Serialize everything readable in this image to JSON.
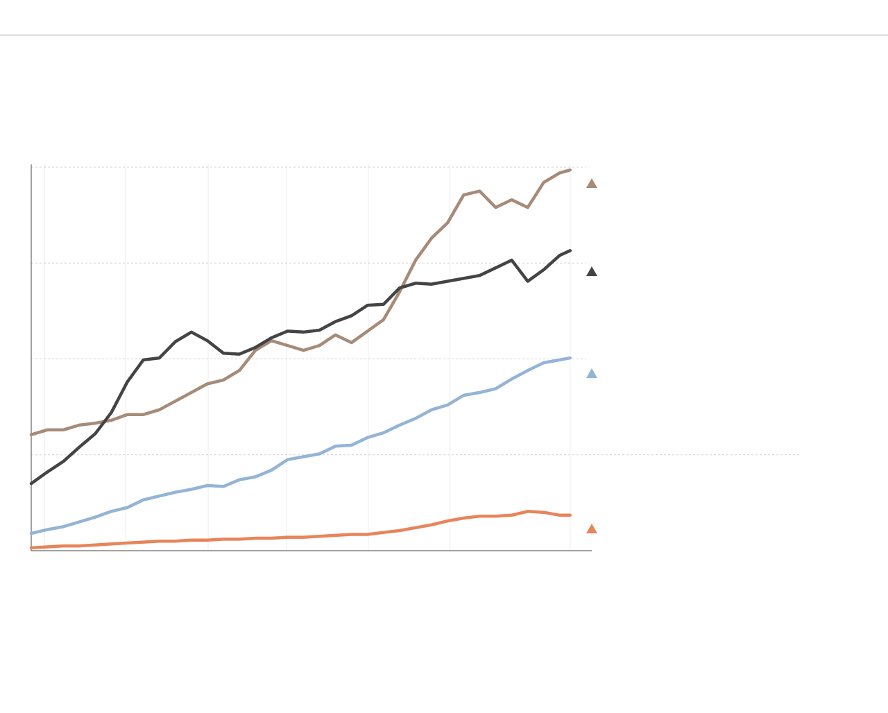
{
  "chart_data": {
    "type": "line",
    "x": [
      0,
      2,
      4,
      6,
      8,
      10,
      12,
      14,
      16,
      18,
      20,
      22,
      24,
      26,
      28,
      30,
      32,
      34,
      36,
      38,
      40,
      42,
      44,
      46,
      48,
      50,
      52,
      54,
      56,
      58,
      60,
      62,
      64,
      66,
      67.3
    ],
    "xlim": [
      0,
      70
    ],
    "ylim": [
      0,
      4
    ],
    "xgrid": [
      1.7,
      11.8,
      22.1,
      31.9,
      42.1,
      52.3,
      67.3
    ],
    "ygrid": [
      1,
      2,
      3,
      4
    ],
    "grid": true,
    "series": [
      {
        "color": "#a58b78",
        "values": [
          1.21,
          1.26,
          1.26,
          1.31,
          1.33,
          1.36,
          1.42,
          1.42,
          1.47,
          1.56,
          1.65,
          1.74,
          1.78,
          1.88,
          2.09,
          2.19,
          2.14,
          2.09,
          2.14,
          2.25,
          2.17,
          2.29,
          2.41,
          2.7,
          3.03,
          3.26,
          3.42,
          3.71,
          3.75,
          3.58,
          3.66,
          3.58,
          3.84,
          3.94,
          3.97
        ]
      },
      {
        "color": "#444444",
        "values": [
          0.7,
          0.82,
          0.93,
          1.08,
          1.22,
          1.44,
          1.76,
          1.99,
          2.01,
          2.18,
          2.28,
          2.19,
          2.06,
          2.05,
          2.12,
          2.22,
          2.29,
          2.28,
          2.3,
          2.39,
          2.45,
          2.56,
          2.57,
          2.74,
          2.79,
          2.78,
          2.81,
          2.84,
          2.87,
          2.95,
          3.03,
          2.81,
          2.93,
          3.08,
          3.13
        ]
      },
      {
        "color": "#94b4d6",
        "values": [
          0.18,
          0.22,
          0.25,
          0.3,
          0.35,
          0.41,
          0.45,
          0.53,
          0.57,
          0.61,
          0.64,
          0.68,
          0.67,
          0.74,
          0.77,
          0.84,
          0.95,
          0.98,
          1.01,
          1.09,
          1.1,
          1.18,
          1.23,
          1.31,
          1.38,
          1.47,
          1.52,
          1.62,
          1.65,
          1.69,
          1.79,
          1.88,
          1.96,
          1.99,
          2.01
        ]
      },
      {
        "color": "#e8845a",
        "values": [
          0.03,
          0.04,
          0.05,
          0.05,
          0.06,
          0.07,
          0.08,
          0.09,
          0.1,
          0.1,
          0.11,
          0.11,
          0.12,
          0.12,
          0.13,
          0.13,
          0.14,
          0.14,
          0.15,
          0.16,
          0.17,
          0.17,
          0.19,
          0.21,
          0.24,
          0.27,
          0.31,
          0.34,
          0.36,
          0.36,
          0.37,
          0.41,
          0.4,
          0.37,
          0.37
        ]
      }
    ]
  }
}
